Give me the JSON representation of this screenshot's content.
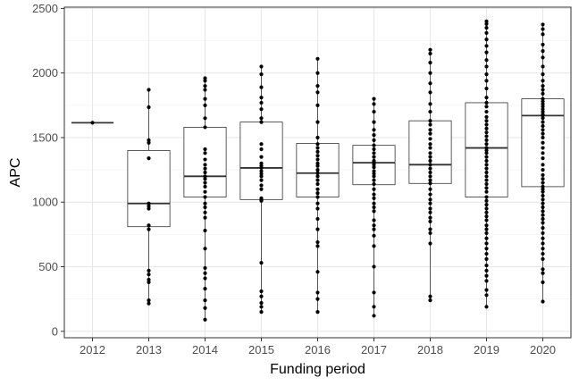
{
  "chart_data": {
    "type": "boxplot",
    "xlabel": "Funding period",
    "ylabel": "APC",
    "ylim": [
      -50,
      2510
    ],
    "yticks": [
      0,
      500,
      1000,
      1500,
      2000,
      2500
    ],
    "grid": true,
    "categories": [
      "2012",
      "2013",
      "2014",
      "2015",
      "2016",
      "2017",
      "2018",
      "2019",
      "2020"
    ],
    "boxes": [
      {
        "category": "2012",
        "min": 1615,
        "q1": 1615,
        "median": 1615,
        "q3": 1615,
        "max": 1615
      },
      {
        "category": "2013",
        "min": 220,
        "q1": 810,
        "median": 990,
        "q3": 1400,
        "max": 1870
      },
      {
        "category": "2014",
        "min": 90,
        "q1": 1040,
        "median": 1200,
        "q3": 1580,
        "max": 1960
      },
      {
        "category": "2015",
        "min": 150,
        "q1": 1020,
        "median": 1265,
        "q3": 1620,
        "max": 2050
      },
      {
        "category": "2016",
        "min": 150,
        "q1": 1040,
        "median": 1225,
        "q3": 1455,
        "max": 2110
      },
      {
        "category": "2017",
        "min": 120,
        "q1": 1135,
        "median": 1305,
        "q3": 1440,
        "max": 1800
      },
      {
        "category": "2018",
        "min": 240,
        "q1": 1145,
        "median": 1290,
        "q3": 1630,
        "max": 2180
      },
      {
        "category": "2019",
        "min": 190,
        "q1": 1040,
        "median": 1420,
        "q3": 1770,
        "max": 2400
      },
      {
        "category": "2020",
        "min": 230,
        "q1": 1120,
        "median": 1670,
        "q3": 1800,
        "max": 2375
      }
    ],
    "points": [
      {
        "category": "2012",
        "values": [
          1615
        ]
      },
      {
        "category": "2013",
        "values": [
          1870,
          1735,
          1480,
          1460,
          1340,
          990,
          970,
          950,
          820,
          790,
          470,
          440,
          400,
          380,
          240,
          215
        ]
      },
      {
        "category": "2014",
        "values": [
          1960,
          1940,
          1900,
          1870,
          1800,
          1750,
          1650,
          1580,
          1410,
          1380,
          1330,
          1290,
          1260,
          1230,
          1200,
          1180,
          1150,
          1120,
          1080,
          1040,
          990,
          960,
          920,
          880,
          780,
          640,
          490,
          450,
          410,
          330,
          240,
          180,
          90
        ]
      },
      {
        "category": "2015",
        "values": [
          2050,
          1990,
          1890,
          1810,
          1770,
          1720,
          1650,
          1620,
          1450,
          1410,
          1350,
          1300,
          1280,
          1265,
          1240,
          1220,
          1200,
          1170,
          1130,
          1100,
          1030,
          1020,
          1010,
          530,
          310,
          270,
          220,
          190,
          150
        ]
      },
      {
        "category": "2016",
        "values": [
          2110,
          2000,
          1900,
          1850,
          1750,
          1620,
          1500,
          1450,
          1420,
          1390,
          1360,
          1330,
          1300,
          1280,
          1250,
          1225,
          1200,
          1170,
          1140,
          1100,
          1070,
          1040,
          990,
          950,
          870,
          790,
          690,
          660,
          460,
          300,
          250,
          150
        ]
      },
      {
        "category": "2017",
        "values": [
          1800,
          1760,
          1700,
          1620,
          1560,
          1520,
          1480,
          1440,
          1410,
          1380,
          1350,
          1320,
          1305,
          1290,
          1270,
          1240,
          1220,
          1200,
          1170,
          1140,
          1100,
          1060,
          1030,
          990,
          960,
          930,
          860,
          820,
          790,
          740,
          660,
          500,
          300,
          190,
          120
        ]
      },
      {
        "category": "2018",
        "values": [
          2180,
          2150,
          2080,
          2000,
          1920,
          1850,
          1760,
          1700,
          1630,
          1600,
          1560,
          1530,
          1490,
          1450,
          1420,
          1380,
          1350,
          1320,
          1290,
          1260,
          1230,
          1200,
          1170,
          1145,
          1100,
          1060,
          1020,
          990,
          950,
          920,
          880,
          850,
          790,
          760,
          680,
          270,
          240
        ]
      },
      {
        "category": "2019",
        "values": [
          2400,
          2380,
          2350,
          2310,
          2260,
          2210,
          2160,
          2100,
          2050,
          1990,
          1940,
          1880,
          1810,
          1770,
          1740,
          1700,
          1660,
          1630,
          1600,
          1570,
          1540,
          1510,
          1480,
          1450,
          1420,
          1400,
          1380,
          1350,
          1320,
          1290,
          1260,
          1230,
          1200,
          1170,
          1140,
          1110,
          1080,
          1040,
          1010,
          980,
          950,
          920,
          890,
          860,
          820,
          790,
          760,
          720,
          680,
          640,
          600,
          560,
          510,
          470,
          430,
          390,
          320,
          280,
          190
        ]
      },
      {
        "category": "2020",
        "values": [
          2375,
          2340,
          2300,
          2220,
          2170,
          2120,
          2050,
          1990,
          1940,
          1900,
          1870,
          1840,
          1800,
          1780,
          1760,
          1740,
          1720,
          1700,
          1680,
          1670,
          1650,
          1620,
          1590,
          1560,
          1530,
          1500,
          1460,
          1420,
          1380,
          1340,
          1290,
          1250,
          1210,
          1180,
          1150,
          1120,
          1100,
          1080,
          1050,
          1020,
          990,
          960,
          930,
          900,
          870,
          840,
          800,
          760,
          720,
          680,
          640,
          600,
          560,
          480,
          450,
          380,
          230
        ]
      }
    ]
  }
}
